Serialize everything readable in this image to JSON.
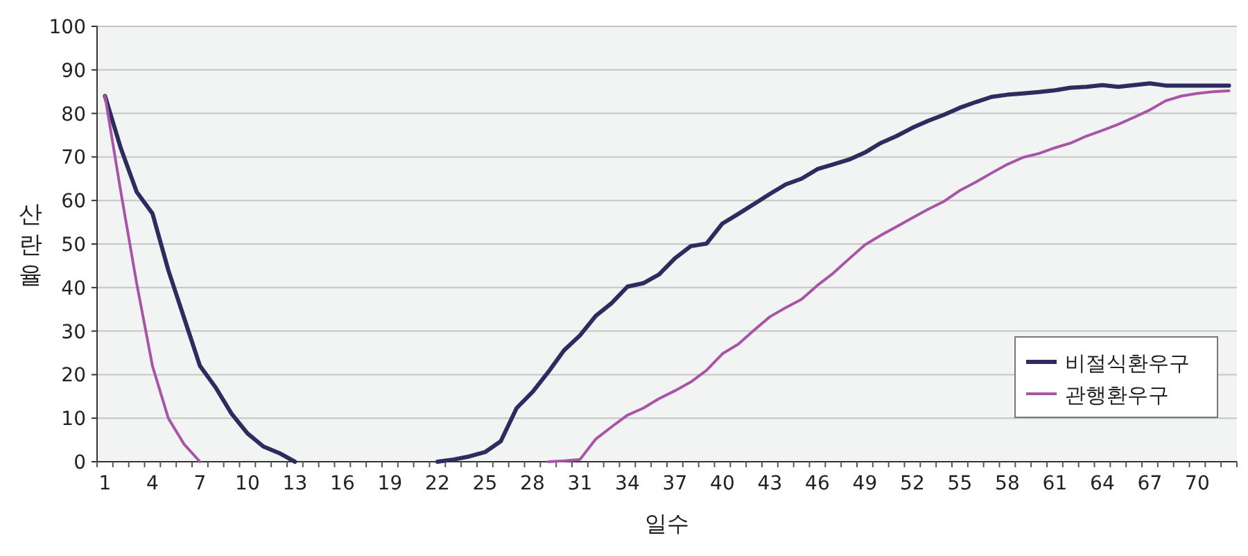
{
  "chart_data": {
    "type": "line",
    "xlabel": "일수",
    "ylabel": "산란율",
    "categories": [
      "1",
      null,
      null,
      "4",
      null,
      null,
      "7",
      null,
      null,
      "10",
      null,
      null,
      "13",
      null,
      null,
      "16",
      null,
      null,
      "19",
      null,
      null,
      "22",
      null,
      null,
      "25",
      null,
      null,
      "28",
      null,
      null,
      "31",
      null,
      null,
      "34",
      null,
      null,
      "37",
      null,
      null,
      "40",
      null,
      null,
      "43",
      null,
      null,
      "46",
      null,
      null,
      "49",
      null,
      null,
      "52",
      null,
      null,
      "55",
      null,
      null,
      "58",
      null,
      null,
      "61",
      null,
      null,
      "64",
      null,
      null,
      "67",
      null,
      null,
      "70",
      null,
      null
    ],
    "series": [
      {
        "name": "비절식환우구",
        "color": "#2e2c5e",
        "values": [
          84,
          72,
          62,
          57,
          44,
          33,
          22,
          17,
          11,
          6.5,
          3.5,
          2,
          0,
          null,
          null,
          null,
          null,
          null,
          null,
          null,
          null,
          0,
          0.5,
          1.2,
          2.2,
          4.7,
          12.3,
          16,
          20.6,
          25.6,
          29,
          33.5,
          36.4,
          40.2,
          41,
          43,
          46.7,
          49.5,
          50.1,
          54.7,
          56.9,
          59.2,
          61.5,
          63.7,
          65,
          67.2,
          68.3,
          69.4,
          71,
          73.2,
          74.8,
          76.7,
          78.3,
          79.7,
          81.3,
          82.6,
          83.8,
          84.3,
          84.6,
          84.9,
          85.3,
          85.9,
          86.1,
          86.5,
          86.1,
          86.5,
          86.9,
          86.4,
          86.4,
          86.4,
          86.4,
          86.4
        ]
      },
      {
        "name": "관행환우구",
        "color": "#a855a8",
        "values": [
          84,
          62,
          41,
          22,
          10,
          4,
          0,
          null,
          null,
          null,
          null,
          null,
          null,
          null,
          null,
          null,
          null,
          null,
          null,
          null,
          null,
          null,
          null,
          null,
          null,
          null,
          null,
          null,
          0,
          0.2,
          0.5,
          5.2,
          8,
          10.7,
          12.3,
          14.5,
          16.3,
          18.3,
          21,
          24.8,
          27,
          30.2,
          33.3,
          35.4,
          37.3,
          40.5,
          43.3,
          46.6,
          49.8,
          52,
          54,
          56,
          58,
          59.8,
          62.3,
          64.2,
          66.3,
          68.3,
          69.9,
          70.8,
          72.1,
          73.2,
          74.8,
          76.1,
          77.5,
          79.1,
          80.8,
          82.9,
          84,
          84.6,
          85,
          85.2
        ]
      }
    ],
    "ylim": [
      0,
      100
    ],
    "yticks": [
      0,
      10,
      20,
      30,
      40,
      50,
      60,
      70,
      80,
      90,
      100
    ],
    "grid": "y",
    "legend": "bottom right"
  }
}
